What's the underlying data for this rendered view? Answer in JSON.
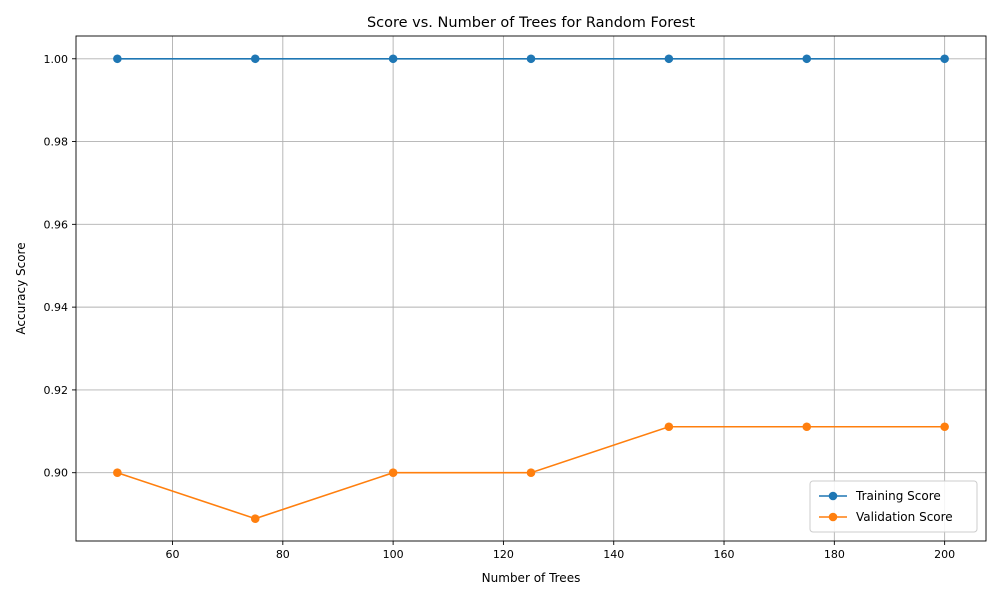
{
  "chart_data": {
    "type": "line",
    "title": "Score vs. Number of Trees for Random Forest",
    "xlabel": "Number of Trees",
    "ylabel": "Accuracy Score",
    "x": [
      50,
      75,
      100,
      125,
      150,
      175,
      200
    ],
    "xlim": [
      42.5,
      207.5
    ],
    "ylim": [
      0.8835,
      1.0055
    ],
    "xticks": [
      60,
      80,
      100,
      120,
      140,
      160,
      180,
      200
    ],
    "yticks": [
      0.9,
      0.92,
      0.94,
      0.96,
      0.98,
      1.0
    ],
    "grid": true,
    "legend_position": "lower-right",
    "series": [
      {
        "name": "Training Score",
        "color": "#1f77b4",
        "marker": "circle",
        "values": [
          1.0,
          1.0,
          1.0,
          1.0,
          1.0,
          1.0,
          1.0
        ]
      },
      {
        "name": "Validation Score",
        "color": "#ff7f0e",
        "marker": "circle",
        "values": [
          0.9,
          0.8889,
          0.9,
          0.9,
          0.9111,
          0.9111,
          0.9111
        ]
      }
    ]
  }
}
